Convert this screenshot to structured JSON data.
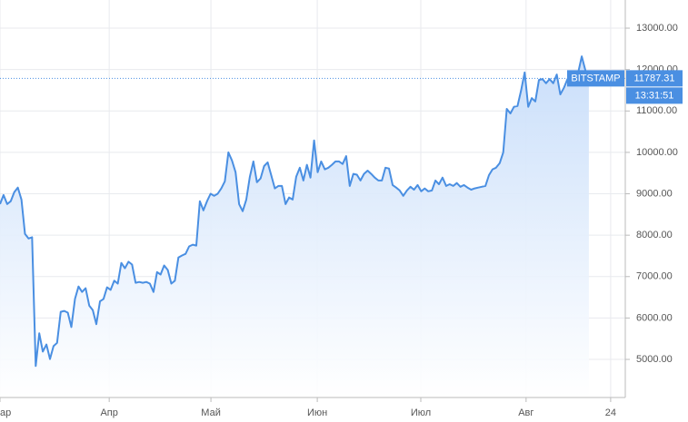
{
  "chart_data": {
    "type": "line",
    "series": [
      {
        "name": "BITSTAMP",
        "color": "#4a8fe2",
        "values": [
          8750,
          8970,
          8750,
          8820,
          9040,
          9150,
          8860,
          8030,
          7920,
          7950,
          4840,
          5630,
          5190,
          5360,
          5010,
          5320,
          5400,
          6150,
          6170,
          6130,
          5780,
          6460,
          6760,
          6630,
          6720,
          6300,
          6190,
          5850,
          6400,
          6460,
          6740,
          6680,
          6900,
          6830,
          7330,
          7200,
          7360,
          7290,
          6850,
          6870,
          6850,
          6870,
          6830,
          6630,
          7110,
          7050,
          7270,
          7160,
          6830,
          6900,
          7460,
          7510,
          7550,
          7730,
          7770,
          7750,
          8820,
          8600,
          8820,
          9000,
          8950,
          9000,
          9130,
          9300,
          10000,
          9800,
          9520,
          8750,
          8580,
          8860,
          9410,
          9780,
          9280,
          9370,
          9670,
          9760,
          9450,
          9130,
          9190,
          9190,
          8750,
          8910,
          8860,
          9410,
          9630,
          9320,
          9700,
          9390,
          10290,
          9520,
          9780,
          9590,
          9630,
          9700,
          9780,
          9780,
          9720,
          9910,
          9190,
          9480,
          9460,
          9320,
          9480,
          9560,
          9480,
          9390,
          9320,
          9320,
          9630,
          9610,
          9210,
          9150,
          9080,
          8950,
          9080,
          9170,
          9100,
          9210,
          9060,
          9130,
          9060,
          9080,
          9320,
          9230,
          9390,
          9190,
          9230,
          9190,
          9260,
          9170,
          9210,
          9150,
          9100,
          9130,
          9150,
          9170,
          9190,
          9450,
          9590,
          9630,
          9740,
          10000,
          11050,
          10940,
          11100,
          11120,
          11490,
          11930,
          11100,
          11310,
          11230,
          11750,
          11770,
          11670,
          11770,
          11670,
          11880,
          11400,
          11560,
          11770,
          11820,
          11840,
          11930,
          12320,
          11990,
          11787.31
        ]
      }
    ],
    "time_label": "13:31:51",
    "xlim": [
      0,
      175.2
    ],
    "xticks": [
      {
        "value": 0,
        "label": "ар"
      },
      {
        "value": 30.6,
        "label": "Апр"
      },
      {
        "value": 59.1,
        "label": "Май"
      },
      {
        "value": 88.9,
        "label": "Июн"
      },
      {
        "value": 117.9,
        "label": "Июл"
      },
      {
        "value": 147.4,
        "label": "Авг"
      },
      {
        "value": 171.1,
        "label": "24"
      }
    ],
    "ylim": [
      4080,
      13680
    ],
    "yticks": [
      {
        "value": 5000,
        "label": "5000.00"
      },
      {
        "value": 6000,
        "label": "6000.00"
      },
      {
        "value": 7000,
        "label": "7000.00"
      },
      {
        "value": 8000,
        "label": "8000.00"
      },
      {
        "value": 9000,
        "label": "9000.00"
      },
      {
        "value": 10000,
        "label": "10000.00"
      },
      {
        "value": 11000,
        "label": "11000.00"
      },
      {
        "value": 12000,
        "label": "12000.00"
      },
      {
        "value": 13000,
        "label": "13000.00"
      }
    ],
    "grid": true
  }
}
